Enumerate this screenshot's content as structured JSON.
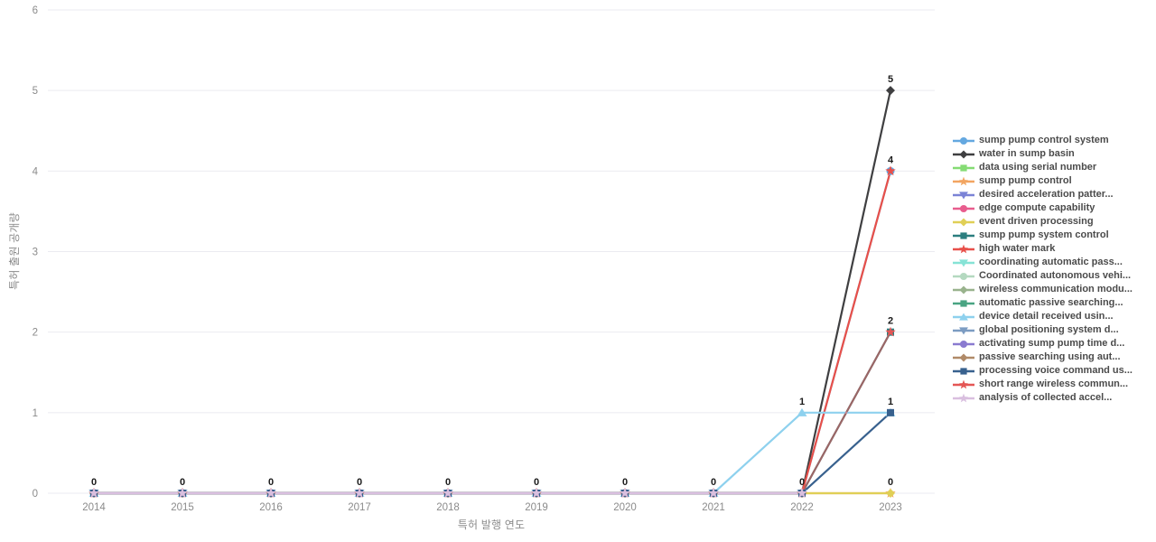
{
  "chart_data": {
    "type": "line",
    "title": "",
    "xlabel": "특허 발행 연도",
    "ylabel": "특허 출원 공개량",
    "x": [
      2014,
      2015,
      2016,
      2017,
      2018,
      2019,
      2020,
      2021,
      2022,
      2023
    ],
    "ylim": [
      0,
      6
    ],
    "yticks": [
      0,
      1,
      2,
      3,
      4,
      5,
      6
    ],
    "grid": true,
    "legend_position": "right",
    "series": [
      {
        "name": "sump pump control system",
        "color": "#64a8e0",
        "marker": "circle",
        "values": [
          0,
          0,
          0,
          0,
          0,
          0,
          0,
          0,
          0,
          4
        ]
      },
      {
        "name": "water in sump basin",
        "color": "#3f3f41",
        "marker": "diamond",
        "values": [
          0,
          0,
          0,
          0,
          0,
          0,
          0,
          0,
          0,
          5
        ]
      },
      {
        "name": "data using serial number",
        "color": "#85dc74",
        "marker": "square",
        "values": [
          0,
          0,
          0,
          0,
          0,
          0,
          0,
          0,
          0,
          null
        ]
      },
      {
        "name": "sump pump control",
        "color": "#f2a561",
        "marker": "star",
        "values": [
          0,
          0,
          0,
          0,
          0,
          0,
          0,
          0,
          0,
          0
        ]
      },
      {
        "name": "desired acceleration patter...",
        "color": "#7b83d6",
        "marker": "triangle-down",
        "values": [
          0,
          0,
          0,
          0,
          0,
          0,
          0,
          0,
          0,
          null
        ]
      },
      {
        "name": "edge compute capability",
        "color": "#e85d8e",
        "marker": "circle",
        "values": [
          0,
          0,
          0,
          0,
          0,
          0,
          0,
          0,
          0,
          null
        ]
      },
      {
        "name": "event driven processing",
        "color": "#e0cf56",
        "marker": "diamond",
        "values": [
          0,
          0,
          0,
          0,
          0,
          0,
          0,
          0,
          0,
          0
        ]
      },
      {
        "name": "sump pump system control",
        "color": "#2b7e7f",
        "marker": "square",
        "values": [
          0,
          0,
          0,
          0,
          0,
          0,
          0,
          0,
          0,
          2
        ]
      },
      {
        "name": "high water mark",
        "color": "#e8504a",
        "marker": "star",
        "values": [
          0,
          0,
          0,
          0,
          0,
          0,
          0,
          0,
          0,
          4
        ]
      },
      {
        "name": "coordinating automatic pass...",
        "color": "#86e3d6",
        "marker": "triangle-down",
        "values": [
          0,
          0,
          0,
          0,
          0,
          0,
          0,
          0,
          0,
          null
        ]
      },
      {
        "name": "Coordinated autonomous vehi...",
        "color": "#b4d9c0",
        "marker": "circle",
        "values": [
          0,
          0,
          0,
          0,
          0,
          0,
          0,
          0,
          0,
          null
        ]
      },
      {
        "name": "wireless communication modu...",
        "color": "#99b38d",
        "marker": "diamond",
        "values": [
          0,
          0,
          0,
          0,
          0,
          0,
          0,
          0,
          0,
          null
        ]
      },
      {
        "name": "automatic passive searching...",
        "color": "#49a482",
        "marker": "square",
        "values": [
          0,
          0,
          0,
          0,
          0,
          0,
          0,
          0,
          0,
          null
        ]
      },
      {
        "name": "device detail received usin...",
        "color": "#8ed1ee",
        "marker": "triangle-up",
        "values": [
          0,
          0,
          0,
          0,
          0,
          0,
          0,
          0,
          1,
          1
        ]
      },
      {
        "name": "global positioning system d...",
        "color": "#7c9cc2",
        "marker": "triangle-down",
        "values": [
          0,
          0,
          0,
          0,
          0,
          0,
          0,
          0,
          0,
          null
        ]
      },
      {
        "name": "activating sump pump time d...",
        "color": "#8a7ad0",
        "marker": "circle",
        "values": [
          0,
          0,
          0,
          0,
          0,
          0,
          0,
          0,
          0,
          null
        ]
      },
      {
        "name": "passive searching using aut...",
        "color": "#b08a68",
        "marker": "diamond",
        "values": [
          0,
          0,
          0,
          0,
          0,
          0,
          0,
          0,
          0,
          null
        ]
      },
      {
        "name": "processing voice command us...",
        "color": "#38618e",
        "marker": "square",
        "values": [
          0,
          0,
          0,
          0,
          0,
          0,
          0,
          0,
          0,
          1
        ]
      },
      {
        "name": "short range wireless commun...",
        "color": "#e45655",
        "marker": "star",
        "values": [
          0,
          0,
          0,
          0,
          0,
          0,
          0,
          0,
          0,
          2
        ],
        "lineOpacity": 0.6
      },
      {
        "name": "analysis of collected accel...",
        "color": "#d9bfdf",
        "marker": "star",
        "values": [
          0,
          0,
          0,
          0,
          0,
          0,
          0,
          0,
          0,
          null
        ]
      }
    ],
    "point_labels": [
      {
        "year": 2014,
        "value": 0,
        "text": "0"
      },
      {
        "year": 2015,
        "value": 0,
        "text": "0"
      },
      {
        "year": 2016,
        "value": 0,
        "text": "0"
      },
      {
        "year": 2017,
        "value": 0,
        "text": "0"
      },
      {
        "year": 2018,
        "value": 0,
        "text": "0"
      },
      {
        "year": 2019,
        "value": 0,
        "text": "0"
      },
      {
        "year": 2020,
        "value": 0,
        "text": "0"
      },
      {
        "year": 2021,
        "value": 0,
        "text": "0"
      },
      {
        "year": 2022,
        "value": 0,
        "text": "0"
      },
      {
        "year": 2022,
        "value": 1,
        "text": "1"
      },
      {
        "year": 2023,
        "value": 0,
        "text": "0"
      },
      {
        "year": 2023,
        "value": 1,
        "text": "1"
      },
      {
        "year": 2023,
        "value": 2,
        "text": "2"
      },
      {
        "year": 2023,
        "value": 4,
        "text": "4"
      },
      {
        "year": 2023,
        "value": 5,
        "text": "5"
      }
    ],
    "colors": {
      "grid": "#ebebf0",
      "tick_label": "#8b8b8b",
      "axis_title": "#8b8b8b",
      "point_label": "#1a1a1a",
      "legend_text": "#4b4b4b",
      "background": "#ffffff"
    }
  }
}
